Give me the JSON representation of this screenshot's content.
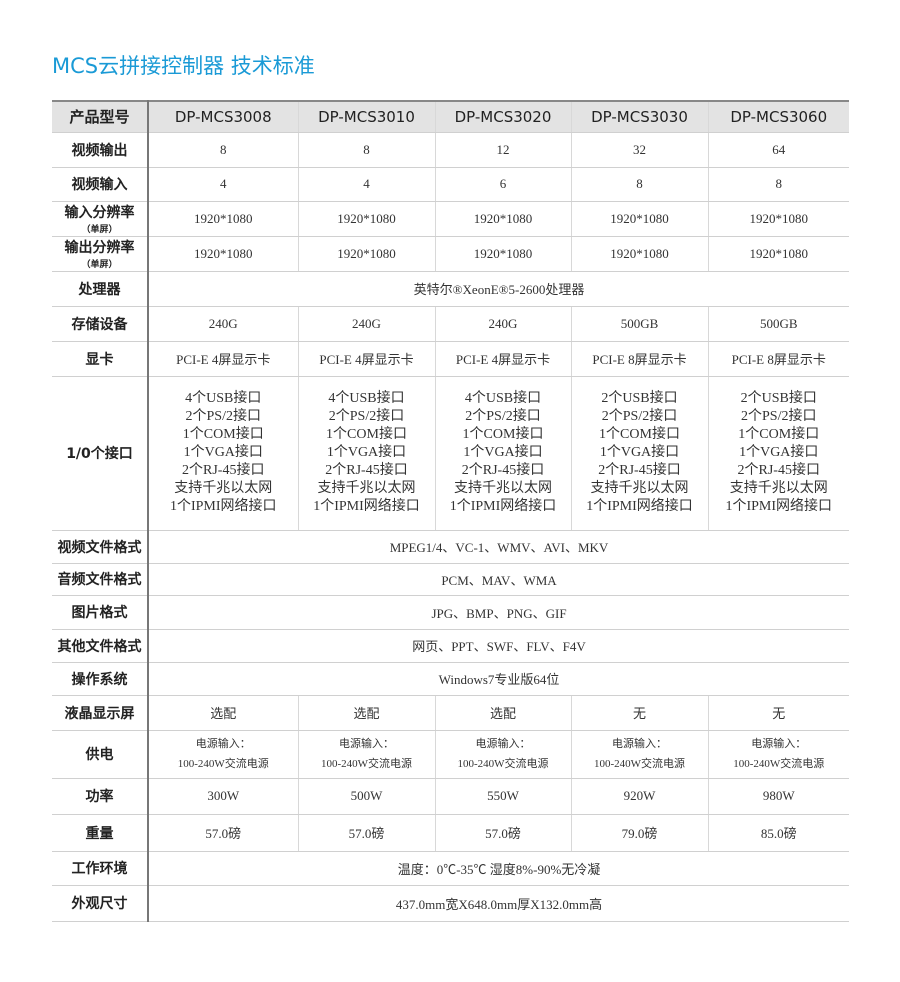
{
  "title": "MCS云拼接控制器 技术标准",
  "header": {
    "label": "产品型号",
    "models": [
      "DP-MCS3008",
      "DP-MCS3010",
      "DP-MCS3020",
      "DP-MCS3030",
      "DP-MCS3060"
    ]
  },
  "rows": [
    {
      "label": "视频输出",
      "values": [
        "8",
        "8",
        "12",
        "32",
        "64"
      ]
    },
    {
      "label": "视频输入",
      "values": [
        "4",
        "4",
        "6",
        "8",
        "8"
      ]
    },
    {
      "label": "输入分辨率",
      "sub": "（单屏）",
      "values": [
        "1920*1080",
        "1920*1080",
        "1920*1080",
        "1920*1080",
        "1920*1080"
      ]
    },
    {
      "label": "输出分辨率",
      "sub": "（单屏）",
      "values": [
        "1920*1080",
        "1920*1080",
        "1920*1080",
        "1920*1080",
        "1920*1080"
      ]
    },
    {
      "label": "处理器",
      "value": "英特尔®XeonE®5-2600处理器"
    },
    {
      "label": "存储设备",
      "values": [
        "240G",
        "240G",
        "240G",
        "500GB",
        "500GB"
      ]
    },
    {
      "label": "显卡",
      "values": [
        "PCI-E 4屏显示卡",
        "PCI-E 4屏显示卡",
        "PCI-E 4屏显示卡",
        "PCI-E 8屏显示卡",
        "PCI-E 8屏显示卡"
      ]
    },
    {
      "label": "1/0个接口",
      "values": [
        [
          "4个USB接口",
          "2个PS/2接口",
          "1个COM接口",
          "1个VGA接口",
          "2个RJ-45接口",
          "支持千兆以太网",
          "1个IPMI网络接口"
        ],
        [
          "4个USB接口",
          "2个PS/2接口",
          "1个COM接口",
          "1个VGA接口",
          "2个RJ-45接口",
          "支持千兆以太网",
          "1个IPMI网络接口"
        ],
        [
          "4个USB接口",
          "2个PS/2接口",
          "1个COM接口",
          "1个VGA接口",
          "2个RJ-45接口",
          "支持千兆以太网",
          "1个IPMI网络接口"
        ],
        [
          "2个USB接口",
          "2个PS/2接口",
          "1个COM接口",
          "1个VGA接口",
          "2个RJ-45接口",
          "支持千兆以太网",
          "1个IPMI网络接口"
        ],
        [
          "2个USB接口",
          "2个PS/2接口",
          "1个COM接口",
          "1个VGA接口",
          "2个RJ-45接口",
          "支持千兆以太网",
          "1个IPMI网络接口"
        ]
      ]
    },
    {
      "label": "视频文件格式",
      "value": "MPEG1/4、VC-1、WMV、AVI、MKV"
    },
    {
      "label": "音频文件格式",
      "value": "PCM、MAV、WMA"
    },
    {
      "label": "图片格式",
      "value": "JPG、BMP、PNG、GIF"
    },
    {
      "label": "其他文件格式",
      "value": "网页、PPT、SWF、FLV、F4V"
    },
    {
      "label": "操作系统",
      "value": "Windows7专业版64位"
    },
    {
      "label": "液晶显示屏",
      "values": [
        "选配",
        "选配",
        "选配",
        "无",
        "无"
      ]
    },
    {
      "label": "供电",
      "values": [
        [
          "电源输入：",
          "100-240W交流电源"
        ],
        [
          "电源输入：",
          "100-240W交流电源"
        ],
        [
          "电源输入：",
          "100-240W交流电源"
        ],
        [
          "电源输入：",
          "100-240W交流电源"
        ],
        [
          "电源输入：",
          "100-240W交流电源"
        ]
      ]
    },
    {
      "label": "功率",
      "values": [
        "300W",
        "500W",
        "550W",
        "920W",
        "980W"
      ]
    },
    {
      "label": "重量",
      "values": [
        "57.0磅",
        "57.0磅",
        "57.0磅",
        "79.0磅",
        "85.0磅"
      ]
    },
    {
      "label": "工作环境",
      "value": "温度：0℃-35℃ 湿度8%-90%无冷凝"
    },
    {
      "label": "外观尺寸",
      "value": "437.0mm宽X648.0mm厚X132.0mm高"
    }
  ]
}
